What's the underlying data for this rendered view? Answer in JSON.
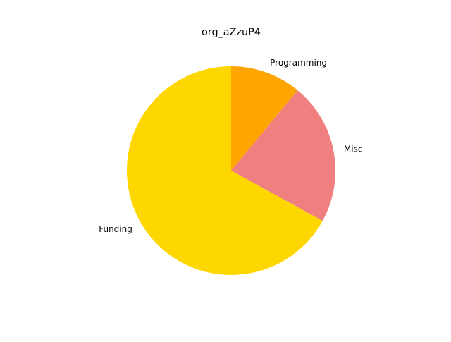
{
  "chart_data": {
    "type": "pie",
    "title": "org_aZzuP4",
    "start_angle_deg": 90,
    "direction": "clockwise",
    "slices": [
      {
        "label": "Programming",
        "value": 11,
        "color": "#FFA500"
      },
      {
        "label": "Misc",
        "value": 22,
        "color": "#F08080"
      },
      {
        "label": "Funding",
        "value": 67,
        "color": "#FFD700"
      }
    ]
  }
}
